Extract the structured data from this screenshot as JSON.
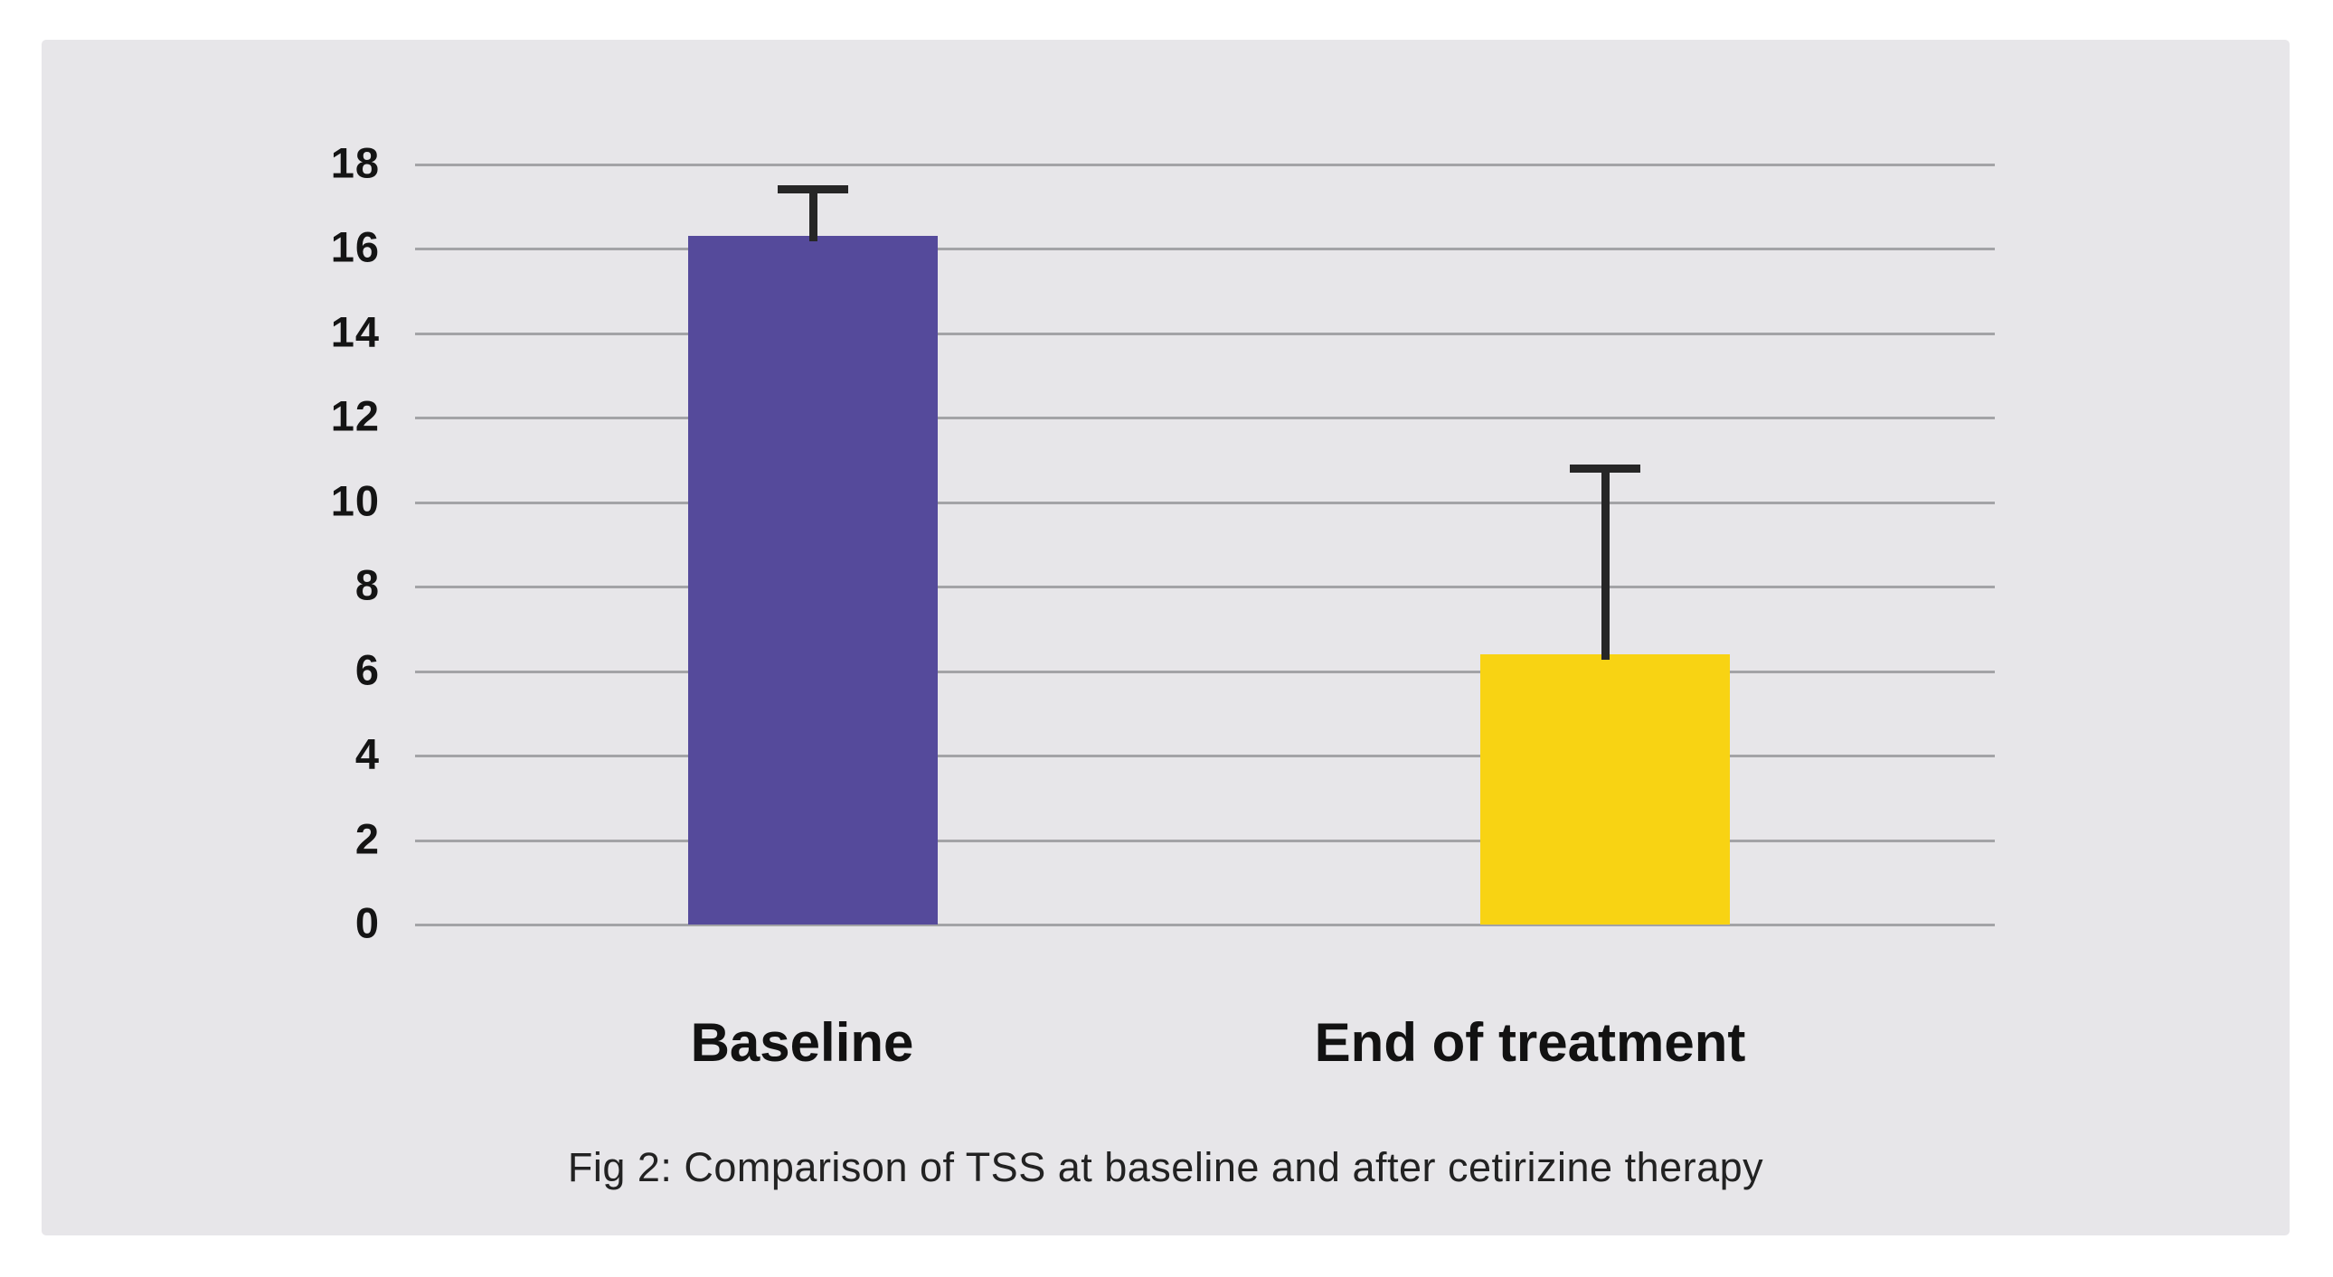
{
  "colors": {
    "page_background": "#ffffff",
    "panel_background": "#e7e6e9",
    "gridline": "#a3a3a6",
    "error_bar": "#262626",
    "text": "#141414",
    "bar_baseline": "#554A9B",
    "bar_end_of_treatment": "#F8D313"
  },
  "chart_data": {
    "type": "bar",
    "title": "",
    "caption": "Fig 2: Comparison of TSS at baseline and after cetirizine therapy",
    "categories": [
      "Baseline",
      "End of treatment"
    ],
    "series": [
      {
        "name": "TSS",
        "values": [
          16.3,
          6.4
        ]
      }
    ],
    "error_bars": {
      "upper": [
        17.5,
        10.9
      ]
    },
    "bar_colors": [
      "#554A9B",
      "#F8D313"
    ],
    "xlabel": "",
    "ylabel": "",
    "ylim": [
      0,
      18
    ],
    "yticks": [
      0,
      2,
      4,
      6,
      8,
      10,
      12,
      14,
      16,
      18
    ],
    "grid": "horizontal",
    "legend": "none"
  }
}
